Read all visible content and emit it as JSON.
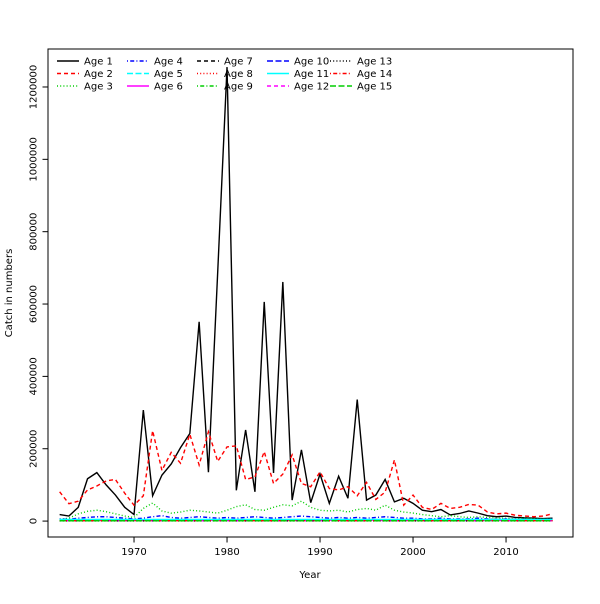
{
  "figure": {
    "background": "#FFFFFF",
    "title": ""
  },
  "chart_data": {
    "type": "line",
    "title": "",
    "xlabel": "Year",
    "ylabel": "Catch in numbers",
    "grid": false,
    "legend_position": "top-left",
    "legend_columns": 5,
    "xlim": [
      1960.75,
      2017.2
    ],
    "ylim": [
      -44000,
      1305000
    ],
    "x_ticks": [
      1970,
      1980,
      1990,
      2000,
      2010
    ],
    "x_tick_labels": [
      "1970",
      "1980",
      "1990",
      "2000",
      "2010"
    ],
    "y_ticks": [
      0,
      200000,
      400000,
      600000,
      800000,
      1000000,
      1200000
    ],
    "y_tick_labels": [
      "0",
      "200000",
      "400000",
      "600000",
      "800000",
      "1000000",
      "1200000"
    ],
    "years": [
      1962,
      1963,
      1964,
      1965,
      1966,
      1967,
      1968,
      1969,
      1970,
      1971,
      1972,
      1973,
      1974,
      1975,
      1976,
      1977,
      1978,
      1979,
      1980,
      1981,
      1982,
      1983,
      1984,
      1985,
      1986,
      1987,
      1988,
      1989,
      1990,
      1991,
      1992,
      1993,
      1994,
      1995,
      1996,
      1997,
      1998,
      1999,
      2000,
      2001,
      2002,
      2003,
      2004,
      2005,
      2006,
      2007,
      2008,
      2009,
      2010,
      2011,
      2012,
      2013,
      2014,
      2015
    ],
    "series": [
      {
        "name": "Age 1",
        "color": "#000000",
        "lty": "solid",
        "values": [
          18000,
          14000,
          38000,
          117000,
          134000,
          100000,
          72000,
          38000,
          18000,
          307000,
          70000,
          127000,
          158000,
          203000,
          242000,
          551000,
          135000,
          690000,
          1255000,
          85000,
          252000,
          81000,
          606000,
          133000,
          661000,
          58000,
          197000,
          51000,
          130000,
          49000,
          124000,
          63000,
          336000,
          58000,
          72000,
          115000,
          53000,
          63000,
          49000,
          30000,
          26000,
          32000,
          17000,
          21000,
          28000,
          22000,
          15000,
          12000,
          14000,
          10000,
          9000,
          8000,
          7000,
          8000
        ]
      },
      {
        "name": "Age 2",
        "color": "#FF0000",
        "lty": "dashed",
        "values": [
          81000,
          48000,
          55000,
          86000,
          97000,
          111000,
          115000,
          77000,
          44000,
          70000,
          250000,
          140000,
          190000,
          160000,
          240000,
          155000,
          247000,
          165000,
          205000,
          208000,
          115000,
          122000,
          192000,
          104000,
          130000,
          183000,
          104000,
          95000,
          136000,
          90000,
          86000,
          95000,
          70000,
          107000,
          60000,
          80000,
          169000,
          44000,
          72000,
          38000,
          32000,
          49000,
          35000,
          38000,
          46000,
          44000,
          25000,
          20000,
          22000,
          16000,
          14000,
          12000,
          14000,
          20000
        ]
      },
      {
        "name": "Age 3",
        "color": "#00CD00",
        "lty": "dotted",
        "values": [
          5000,
          8000,
          20000,
          27000,
          30000,
          26000,
          20000,
          14000,
          10000,
          35000,
          50000,
          28000,
          22000,
          25000,
          30000,
          28000,
          25000,
          22000,
          30000,
          40000,
          45000,
          32000,
          30000,
          38000,
          45000,
          42000,
          55000,
          38000,
          30000,
          28000,
          30000,
          25000,
          32000,
          35000,
          30000,
          44000,
          30000,
          25000,
          22000,
          18000,
          15000,
          12000,
          15000,
          12000,
          10000,
          12000,
          10000,
          8000,
          8000,
          6000,
          8000,
          6000,
          5000,
          6000
        ]
      },
      {
        "name": "Age 4",
        "color": "#0000FF",
        "lty": "dotdash",
        "values": [
          6000,
          5000,
          8000,
          10000,
          12000,
          12000,
          10000,
          8000,
          6000,
          8000,
          12000,
          15000,
          10000,
          8000,
          10000,
          12000,
          10000,
          8000,
          10000,
          8000,
          10000,
          12000,
          10000,
          8000,
          10000,
          12000,
          14000,
          12000,
          10000,
          8000,
          10000,
          8000,
          10000,
          8000,
          10000,
          12000,
          10000,
          8000,
          8000,
          6000,
          6000,
          8000,
          6000,
          6000,
          6000,
          8000,
          6000,
          5000,
          6000,
          5000,
          5000,
          4000,
          4000,
          5000
        ]
      },
      {
        "name": "Age 5",
        "color": "#00FFFF",
        "lty": "longdash",
        "constant": 4000
      },
      {
        "name": "Age 6",
        "color": "#FF00FF",
        "lty": "solid",
        "constant": 2500
      },
      {
        "name": "Age 7",
        "color": "#000000",
        "lty": "dashed",
        "constant": 2000
      },
      {
        "name": "Age 8",
        "color": "#FF0000",
        "lty": "dotted",
        "constant": 1500
      },
      {
        "name": "Age 9",
        "color": "#00CD00",
        "lty": "dotdash",
        "constant": 2800
      },
      {
        "name": "Age 10",
        "color": "#0000FF",
        "lty": "longdash",
        "constant": 1000
      },
      {
        "name": "Age 11",
        "color": "#00FFFF",
        "lty": "solid",
        "constant": 4500
      },
      {
        "name": "Age 12",
        "color": "#FF00FF",
        "lty": "dashed",
        "constant": 800
      },
      {
        "name": "Age 13",
        "color": "#000000",
        "lty": "dotted",
        "constant": 500
      },
      {
        "name": "Age 14",
        "color": "#FF0000",
        "lty": "dotdash",
        "constant": 1200
      },
      {
        "name": "Age 15",
        "color": "#00CD00",
        "lty": "longdash",
        "constant": 900
      }
    ]
  }
}
